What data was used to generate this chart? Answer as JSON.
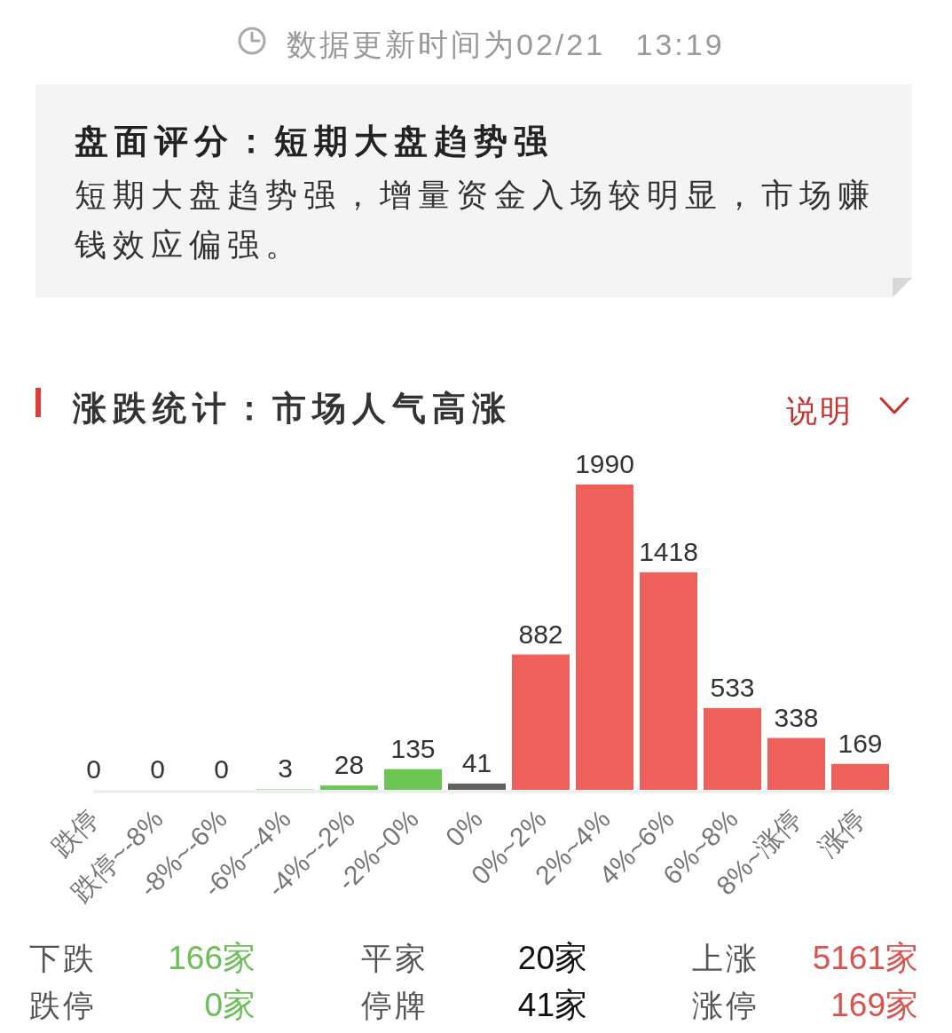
{
  "chart_data": [
    {
      "type": "other",
      "title": "盘面评分：短期大盘趋势强",
      "subtitle": "短期大盘趋势强，增量资金入场较明显，市场赚钱效应偏强。",
      "annotations": [
        "数据更新时间为02/21 13:19"
      ]
    },
    {
      "type": "bar",
      "title": "涨跌统计：市场人气高涨",
      "annotations": [
        "说明"
      ],
      "categories": [
        "跌停",
        "跌停~-8%",
        "-8%~-6%",
        "-6%~-4%",
        "-4%~-2%",
        "-2%~0%",
        "0%",
        "0%~2%",
        "2%~4%",
        "4%~6%",
        "6%~8%",
        "8%~涨停",
        "涨停"
      ],
      "values": [
        0,
        0,
        0,
        3,
        28,
        135,
        41,
        882,
        1990,
        1418,
        533,
        338,
        169
      ],
      "colors": [
        "#6cc452",
        "#6cc452",
        "#6cc452",
        "#6cc452",
        "#6cc452",
        "#6cc452",
        "#606060",
        "#f0605b",
        "#f0605b",
        "#f0605b",
        "#f0605b",
        "#f0605b",
        "#f0605b"
      ],
      "data_labels": true
    },
    {
      "type": "other",
      "annotations": [
        "下跌",
        "166家",
        "平家",
        "20家",
        "上涨",
        "5161家",
        "跌停",
        "0家",
        "停牌",
        "41家",
        "涨停",
        "169家"
      ]
    }
  ]
}
